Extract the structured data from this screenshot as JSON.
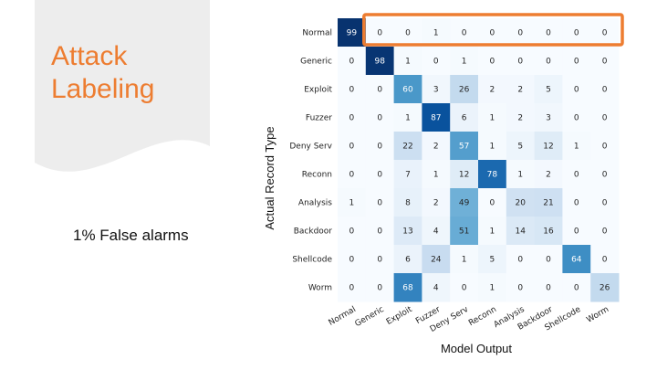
{
  "slide": {
    "title_line1": "Attack",
    "title_line2": "Labeling",
    "subtitle": "1% False alarms",
    "title_color": "#ED7D31",
    "panel_color": "#EDEDED",
    "highlight_color": "#ED7D31"
  },
  "chart_data": {
    "type": "heatmap",
    "xlabel": "Model Output",
    "ylabel": "Actual Record Type",
    "labels": [
      "Normal",
      "Generic",
      "Exploit",
      "Fuzzer",
      "Deny Serv",
      "Reconn",
      "Analysis",
      "Backdoor",
      "Shellcode",
      "Worm"
    ],
    "matrix": [
      [
        99,
        0,
        0,
        1,
        0,
        0,
        0,
        0,
        0,
        0
      ],
      [
        0,
        98,
        1,
        0,
        1,
        0,
        0,
        0,
        0,
        0
      ],
      [
        0,
        0,
        60,
        3,
        26,
        2,
        2,
        5,
        0,
        0
      ],
      [
        0,
        0,
        1,
        87,
        6,
        1,
        2,
        3,
        0,
        0
      ],
      [
        0,
        0,
        22,
        2,
        57,
        1,
        5,
        12,
        1,
        0
      ],
      [
        0,
        0,
        7,
        1,
        12,
        78,
        1,
        2,
        0,
        0
      ],
      [
        1,
        0,
        8,
        2,
        49,
        0,
        20,
        21,
        0,
        0
      ],
      [
        0,
        0,
        13,
        4,
        51,
        1,
        14,
        16,
        0,
        0
      ],
      [
        0,
        0,
        6,
        24,
        1,
        5,
        0,
        0,
        64,
        0
      ],
      [
        0,
        0,
        68,
        4,
        0,
        1,
        0,
        0,
        0,
        26
      ]
    ],
    "value_range": [
      0,
      100
    ],
    "colormap": "Blues",
    "highlight": {
      "row": 0,
      "col_start": 1,
      "col_end": 9
    }
  }
}
